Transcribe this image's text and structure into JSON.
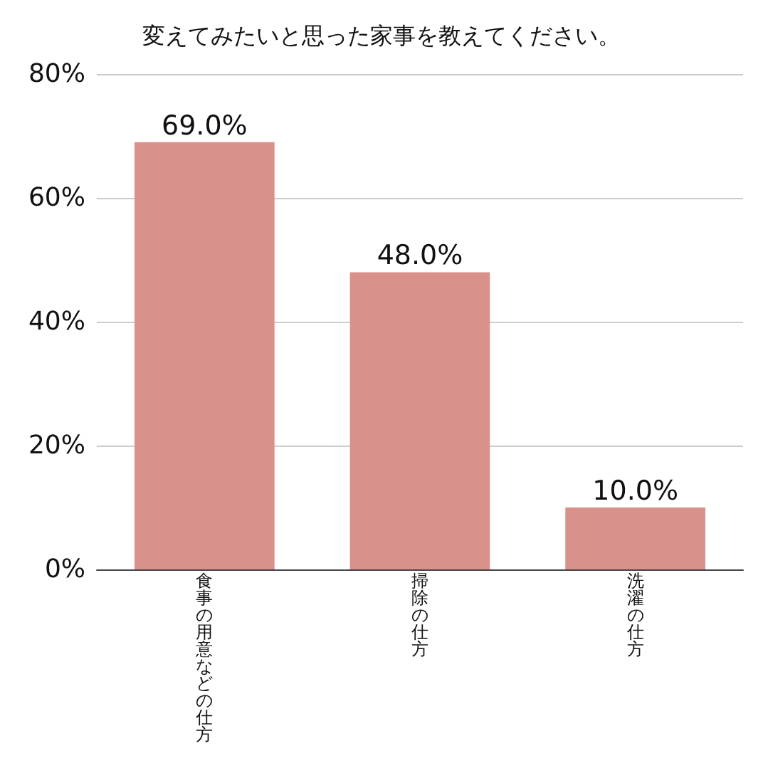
{
  "chart_data": {
    "type": "bar",
    "title": "変えてみたいと思った家事を教えてください。",
    "categories": [
      "食事の用意などの仕方",
      "掃除の仕方",
      "洗濯の仕方"
    ],
    "values": [
      69.0,
      48.0,
      10.0
    ],
    "color": "#d9918b",
    "value_labels": [
      "69.0%",
      "48.0%",
      "10.0%"
    ],
    "ylim": [
      0,
      80
    ],
    "yticks": [
      {
        "value": 0,
        "label": "0%"
      },
      {
        "value": 20,
        "label": "20%"
      },
      {
        "value": 40,
        "label": "40%"
      },
      {
        "value": 60,
        "label": "60%"
      },
      {
        "value": 80,
        "label": "80%"
      }
    ],
    "grid": "y"
  }
}
